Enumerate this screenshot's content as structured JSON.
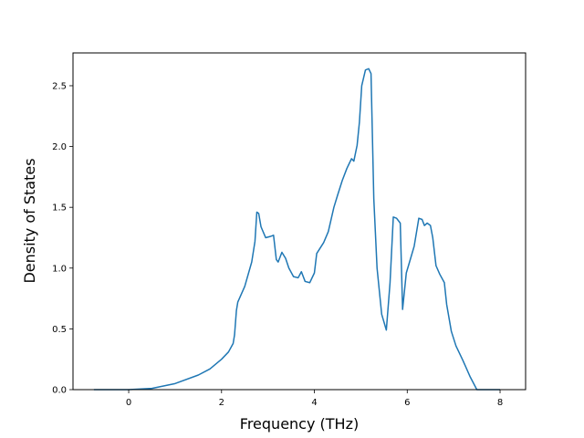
{
  "chart_data": {
    "type": "line",
    "title": "",
    "xlabel": "Frequency (THz)",
    "ylabel": "Density of States",
    "xlim": [
      -1.2,
      8.55
    ],
    "ylim": [
      0,
      2.77
    ],
    "x_ticks": [
      0,
      2,
      4,
      6,
      8
    ],
    "x_tick_labels": [
      "0",
      "2",
      "4",
      "6",
      "8"
    ],
    "y_ticks": [
      0.0,
      0.5,
      1.0,
      1.5,
      2.0,
      2.5
    ],
    "y_tick_labels": [
      "0.0",
      "0.5",
      "1.0",
      "1.5",
      "2.0",
      "2.5"
    ],
    "grid": false,
    "line_color": "#1f77b4",
    "series": [
      {
        "x": [
          -0.75,
          0.0,
          0.5,
          1.0,
          1.5,
          1.75,
          2.0,
          2.15,
          2.25,
          2.28,
          2.32,
          2.35,
          2.5,
          2.65,
          2.72,
          2.76,
          2.8,
          2.85,
          2.95,
          3.05,
          3.12,
          3.18,
          3.22,
          3.3,
          3.38,
          3.45,
          3.55,
          3.65,
          3.72,
          3.8,
          3.9,
          4.0,
          4.05,
          4.1,
          4.2,
          4.3,
          4.42,
          4.5,
          4.6,
          4.7,
          4.8,
          4.85,
          4.92,
          4.97,
          5.02,
          5.1,
          5.17,
          5.22,
          5.28,
          5.35,
          5.45,
          5.55,
          5.63,
          5.7,
          5.77,
          5.85,
          5.9,
          5.98,
          6.05,
          6.15,
          6.25,
          6.32,
          6.37,
          6.43,
          6.5,
          6.55,
          6.62,
          6.7,
          6.8,
          6.85,
          6.95,
          7.05,
          7.2,
          7.35,
          7.5,
          8.0
        ],
        "y": [
          0.0,
          0.0,
          0.01,
          0.05,
          0.12,
          0.17,
          0.25,
          0.31,
          0.38,
          0.45,
          0.65,
          0.72,
          0.85,
          1.05,
          1.22,
          1.46,
          1.45,
          1.34,
          1.25,
          1.26,
          1.27,
          1.07,
          1.05,
          1.13,
          1.08,
          1.0,
          0.93,
          0.92,
          0.97,
          0.89,
          0.88,
          0.96,
          1.12,
          1.15,
          1.21,
          1.3,
          1.5,
          1.6,
          1.72,
          1.82,
          1.9,
          1.88,
          2.01,
          2.2,
          2.5,
          2.63,
          2.64,
          2.6,
          1.57,
          1.0,
          0.62,
          0.49,
          0.88,
          1.42,
          1.41,
          1.37,
          0.66,
          0.96,
          1.05,
          1.18,
          1.41,
          1.4,
          1.35,
          1.37,
          1.35,
          1.25,
          1.02,
          0.95,
          0.88,
          0.7,
          0.48,
          0.36,
          0.24,
          0.11,
          0.0,
          0.0
        ]
      }
    ]
  }
}
